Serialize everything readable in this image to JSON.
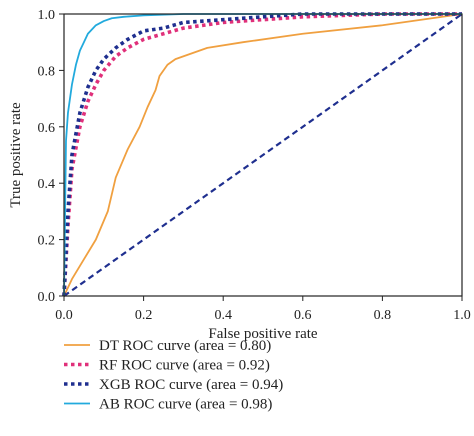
{
  "chart_data": {
    "type": "line",
    "xlabel": "False positive rate",
    "ylabel": "True positive rate",
    "xlim": [
      0.0,
      1.0
    ],
    "ylim": [
      0.0,
      1.0
    ],
    "x_ticks": [
      "0.0",
      "0.2",
      "0.4",
      "0.6",
      "0.8",
      "1.0"
    ],
    "y_ticks": [
      "0.0",
      "0.2",
      "0.4",
      "0.6",
      "0.8",
      "1.0"
    ],
    "grid": false,
    "legend_position": "below",
    "series": [
      {
        "name": "DT ROC curve (area = 0.80)",
        "color": "#f0a040",
        "style": "solid",
        "x": [
          0.0,
          0.02,
          0.05,
          0.08,
          0.11,
          0.13,
          0.16,
          0.19,
          0.21,
          0.23,
          0.24,
          0.26,
          0.28,
          0.32,
          0.36,
          0.45,
          0.6,
          0.8,
          1.0
        ],
        "y": [
          0.0,
          0.06,
          0.13,
          0.2,
          0.3,
          0.42,
          0.52,
          0.6,
          0.67,
          0.73,
          0.78,
          0.82,
          0.84,
          0.86,
          0.88,
          0.9,
          0.93,
          0.96,
          1.0
        ]
      },
      {
        "name": "RF ROC curve (area = 0.92)",
        "color": "#e0307a",
        "style": "dotted",
        "x": [
          0.0,
          0.01,
          0.02,
          0.04,
          0.06,
          0.08,
          0.1,
          0.13,
          0.16,
          0.2,
          0.25,
          0.3,
          0.4,
          0.5,
          0.6,
          0.8,
          1.0
        ],
        "y": [
          0.0,
          0.25,
          0.45,
          0.6,
          0.69,
          0.75,
          0.8,
          0.85,
          0.88,
          0.91,
          0.93,
          0.95,
          0.97,
          0.98,
          0.99,
          1.0,
          1.0
        ]
      },
      {
        "name": "XGB ROC curve (area = 0.94)",
        "color": "#1f2f8f",
        "style": "dotted",
        "x": [
          0.0,
          0.01,
          0.02,
          0.04,
          0.06,
          0.08,
          0.1,
          0.13,
          0.16,
          0.2,
          0.25,
          0.3,
          0.4,
          0.5,
          0.6,
          0.8,
          1.0
        ],
        "y": [
          0.0,
          0.3,
          0.5,
          0.65,
          0.74,
          0.8,
          0.84,
          0.88,
          0.91,
          0.94,
          0.95,
          0.97,
          0.98,
          0.99,
          1.0,
          1.0,
          1.0
        ]
      },
      {
        "name": "AB ROC curve (area = 0.98)",
        "color": "#22aadd",
        "style": "solid",
        "x": [
          0.0,
          0.005,
          0.01,
          0.015,
          0.02,
          0.03,
          0.04,
          0.05,
          0.06,
          0.08,
          0.1,
          0.12,
          0.15,
          0.2,
          0.3,
          0.4,
          0.6,
          0.8,
          1.0
        ],
        "y": [
          0.0,
          0.55,
          0.65,
          0.7,
          0.75,
          0.82,
          0.87,
          0.9,
          0.93,
          0.96,
          0.975,
          0.985,
          0.99,
          0.995,
          1.0,
          1.0,
          1.0,
          1.0,
          1.0
        ]
      },
      {
        "name": "",
        "color": "#1f2f8f",
        "style": "dashed",
        "x": [
          0.0,
          1.0
        ],
        "y": [
          0.0,
          1.0
        ]
      }
    ]
  }
}
